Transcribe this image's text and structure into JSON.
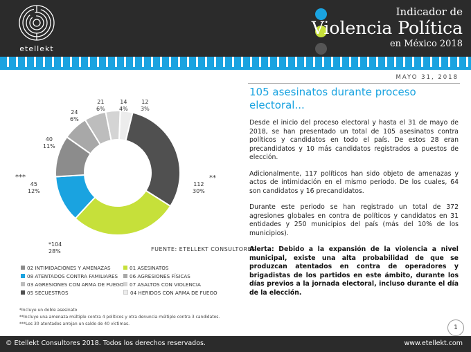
{
  "header": {
    "logo_text": "etellekt",
    "title_line1": "Indicador de",
    "title_line2": "Violencia Política",
    "title_line3": "en México 2018",
    "dot_colors": [
      "#1aa3e0",
      "#c6e03a",
      "#555555"
    ]
  },
  "date": "MAYO 31, 2018",
  "chart_data": {
    "type": "pie",
    "subtype": "donut",
    "slices": [
      {
        "code": "01",
        "label": "ASESINATOS",
        "value": 104,
        "percent": "28%",
        "display_value": "*104",
        "color": "#c6e03a"
      },
      {
        "code": "08",
        "label": "ATENTADOS CONTRA FAMILIARES",
        "value": 45,
        "percent": "12%",
        "display_value": "45",
        "marker": "***",
        "color": "#1aa3e0"
      },
      {
        "code": "02",
        "label": "INTIMIDACIONES Y AMENAZAS",
        "value": 40,
        "percent": "11%",
        "display_value": "40",
        "color": "#8c8c8c"
      },
      {
        "code": "06",
        "label": "AGRESIONES FÍSICAS",
        "value": 24,
        "percent": "6%",
        "display_value": "24",
        "color": "#a8a8a8"
      },
      {
        "code": "03",
        "label": "AGRESIONES CON ARMA DE FUEGO",
        "value": 21,
        "percent": "6%",
        "display_value": "21",
        "color": "#bdbdbd"
      },
      {
        "code": "07",
        "label": "ASALTOS CON VIOLENCIA",
        "value": 14,
        "percent": "4%",
        "display_value": "14",
        "color": "#d4d4d4"
      },
      {
        "code": "04",
        "label": "HERIDOS CON ARMA DE FUEGO",
        "value": 12,
        "percent": "3%",
        "display_value": "12",
        "color": "#ececec"
      },
      {
        "code": "05",
        "label": "SECUESTROS",
        "value": 112,
        "percent": "30%",
        "display_value": "112",
        "marker": "**",
        "color": "#505050"
      }
    ],
    "source": "FUENTE: ETELLEKT CONSULTORES",
    "legend": [
      {
        "text": "02 INTIMIDACIONES Y AMENAZAS",
        "color": "#8c8c8c"
      },
      {
        "text": "01 ASESINATOS",
        "color": "#c6e03a"
      },
      {
        "text": "08 ATENTADOS CONTRA FAMILIARES",
        "color": "#1aa3e0"
      },
      {
        "text": "06 AGRESIONES FÍSICAS",
        "color": "#a8a8a8"
      },
      {
        "text": "03 AGRESIONES CON ARMA DE FUEGO",
        "color": "#bdbdbd"
      },
      {
        "text": "07 ASALTOS CON VIOLENCIA",
        "color": "#d4d4d4"
      },
      {
        "text": "05 SECUESTROS",
        "color": "#505050"
      },
      {
        "text": "04 HERIDOS CON ARMA DE FUEGO",
        "color": "#ececec"
      }
    ],
    "notes": [
      "*Incluye un doble asesinato",
      "**Incluye una amenaza múltiple contra 4 políticos y otra denuncia múltiple contra 3 candidatos.",
      "***Los 30 atentados arrojan un saldo de 40 víctimas."
    ]
  },
  "article": {
    "headline": "105 asesinatos durante proceso electoral...",
    "p1": "Desde el inicio del proceso electoral y hasta el 31 de mayo de 2018, se han presentado un total de 105 asesinatos contra políticos y candidatos en todo el país. De estos 28 eran precandidatos y 10 más candidatos registrados a puestos de elección.",
    "p2": "Adicionalmente, 117 políticos han sido objeto de amenazas y actos de intimidación en el mismo periodo. De los cuales, 64 son candidatos y 16 precandidatos.",
    "p3": "Durante este periodo se han registrado un total de 372 agresiones globales en contra de políticos y candidatos en 31 entidades y 250 municipios del país (más del 10% de los municipios).",
    "alert": "Alerta: Debido a la expansión de la violencia a nivel municipal, existe una alta probabilidad de que se produzcan atentados en contra de operadores y brigadistas de los partidos en este ámbito, durante los días previos a la jornada electoral, incluso durante el día de la elección."
  },
  "page_number": "1",
  "footer": {
    "left": "© Etellekt Consultores 2018. Todos los derechos reservados.",
    "right": "www.etellekt.com"
  }
}
